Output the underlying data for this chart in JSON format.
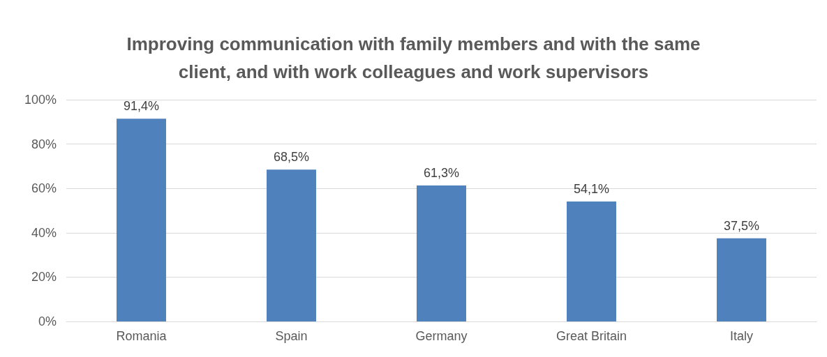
{
  "chart_data": {
    "type": "bar",
    "title": "Improving communication with family members and with the same\nclient, and with work colleagues and work supervisors",
    "categories": [
      "Romania",
      "Spain",
      "Germany",
      "Great Britain",
      "Italy"
    ],
    "values": [
      91.4,
      68.5,
      61.3,
      54.1,
      37.5
    ],
    "value_labels": [
      "91,4%",
      "68,5%",
      "61,3%",
      "54,1%",
      "37,5%"
    ],
    "color": "#4f81bd",
    "ylim": [
      0,
      100
    ],
    "yticks": [
      {
        "value": 0,
        "label": "0%"
      },
      {
        "value": 20,
        "label": "20%"
      },
      {
        "value": 40,
        "label": "40%"
      },
      {
        "value": 60,
        "label": "60%"
      },
      {
        "value": 80,
        "label": "80%"
      },
      {
        "value": 100,
        "label": "100%"
      }
    ],
    "grid": "y"
  }
}
